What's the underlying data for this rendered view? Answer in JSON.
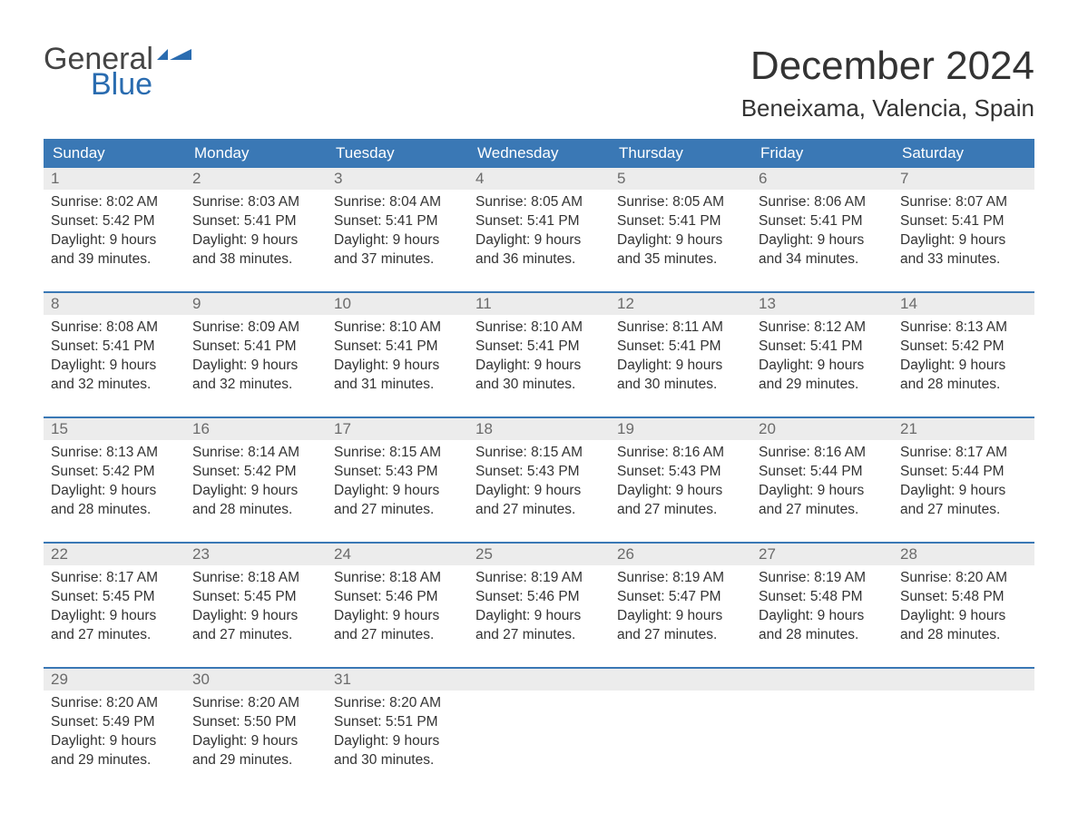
{
  "logo": {
    "text1": "General",
    "text2": "Blue",
    "flag_color": "#2a6cb0",
    "blue_color": "#2a6cb0",
    "general_color": "#444444"
  },
  "title": "December 2024",
  "location": "Beneixama, Valencia, Spain",
  "header_bg": "#3a78b5",
  "row_hr_color": "#3a78b5",
  "daynum_bg": "#ececec",
  "text_color": "#333333",
  "day_headers": [
    "Sunday",
    "Monday",
    "Tuesday",
    "Wednesday",
    "Thursday",
    "Friday",
    "Saturday"
  ],
  "weeks": [
    [
      {
        "n": "1",
        "sr": "8:02 AM",
        "ss": "5:42 PM",
        "dl": "9 hours and 39 minutes."
      },
      {
        "n": "2",
        "sr": "8:03 AM",
        "ss": "5:41 PM",
        "dl": "9 hours and 38 minutes."
      },
      {
        "n": "3",
        "sr": "8:04 AM",
        "ss": "5:41 PM",
        "dl": "9 hours and 37 minutes."
      },
      {
        "n": "4",
        "sr": "8:05 AM",
        "ss": "5:41 PM",
        "dl": "9 hours and 36 minutes."
      },
      {
        "n": "5",
        "sr": "8:05 AM",
        "ss": "5:41 PM",
        "dl": "9 hours and 35 minutes."
      },
      {
        "n": "6",
        "sr": "8:06 AM",
        "ss": "5:41 PM",
        "dl": "9 hours and 34 minutes."
      },
      {
        "n": "7",
        "sr": "8:07 AM",
        "ss": "5:41 PM",
        "dl": "9 hours and 33 minutes."
      }
    ],
    [
      {
        "n": "8",
        "sr": "8:08 AM",
        "ss": "5:41 PM",
        "dl": "9 hours and 32 minutes."
      },
      {
        "n": "9",
        "sr": "8:09 AM",
        "ss": "5:41 PM",
        "dl": "9 hours and 32 minutes."
      },
      {
        "n": "10",
        "sr": "8:10 AM",
        "ss": "5:41 PM",
        "dl": "9 hours and 31 minutes."
      },
      {
        "n": "11",
        "sr": "8:10 AM",
        "ss": "5:41 PM",
        "dl": "9 hours and 30 minutes."
      },
      {
        "n": "12",
        "sr": "8:11 AM",
        "ss": "5:41 PM",
        "dl": "9 hours and 30 minutes."
      },
      {
        "n": "13",
        "sr": "8:12 AM",
        "ss": "5:41 PM",
        "dl": "9 hours and 29 minutes."
      },
      {
        "n": "14",
        "sr": "8:13 AM",
        "ss": "5:42 PM",
        "dl": "9 hours and 28 minutes."
      }
    ],
    [
      {
        "n": "15",
        "sr": "8:13 AM",
        "ss": "5:42 PM",
        "dl": "9 hours and 28 minutes."
      },
      {
        "n": "16",
        "sr": "8:14 AM",
        "ss": "5:42 PM",
        "dl": "9 hours and 28 minutes."
      },
      {
        "n": "17",
        "sr": "8:15 AM",
        "ss": "5:43 PM",
        "dl": "9 hours and 27 minutes."
      },
      {
        "n": "18",
        "sr": "8:15 AM",
        "ss": "5:43 PM",
        "dl": "9 hours and 27 minutes."
      },
      {
        "n": "19",
        "sr": "8:16 AM",
        "ss": "5:43 PM",
        "dl": "9 hours and 27 minutes."
      },
      {
        "n": "20",
        "sr": "8:16 AM",
        "ss": "5:44 PM",
        "dl": "9 hours and 27 minutes."
      },
      {
        "n": "21",
        "sr": "8:17 AM",
        "ss": "5:44 PM",
        "dl": "9 hours and 27 minutes."
      }
    ],
    [
      {
        "n": "22",
        "sr": "8:17 AM",
        "ss": "5:45 PM",
        "dl": "9 hours and 27 minutes."
      },
      {
        "n": "23",
        "sr": "8:18 AM",
        "ss": "5:45 PM",
        "dl": "9 hours and 27 minutes."
      },
      {
        "n": "24",
        "sr": "8:18 AM",
        "ss": "5:46 PM",
        "dl": "9 hours and 27 minutes."
      },
      {
        "n": "25",
        "sr": "8:19 AM",
        "ss": "5:46 PM",
        "dl": "9 hours and 27 minutes."
      },
      {
        "n": "26",
        "sr": "8:19 AM",
        "ss": "5:47 PM",
        "dl": "9 hours and 27 minutes."
      },
      {
        "n": "27",
        "sr": "8:19 AM",
        "ss": "5:48 PM",
        "dl": "9 hours and 28 minutes."
      },
      {
        "n": "28",
        "sr": "8:20 AM",
        "ss": "5:48 PM",
        "dl": "9 hours and 28 minutes."
      }
    ],
    [
      {
        "n": "29",
        "sr": "8:20 AM",
        "ss": "5:49 PM",
        "dl": "9 hours and 29 minutes."
      },
      {
        "n": "30",
        "sr": "8:20 AM",
        "ss": "5:50 PM",
        "dl": "9 hours and 29 minutes."
      },
      {
        "n": "31",
        "sr": "8:20 AM",
        "ss": "5:51 PM",
        "dl": "9 hours and 30 minutes."
      },
      null,
      null,
      null,
      null
    ]
  ],
  "labels": {
    "sunrise": "Sunrise: ",
    "sunset": "Sunset: ",
    "daylight": "Daylight: "
  }
}
